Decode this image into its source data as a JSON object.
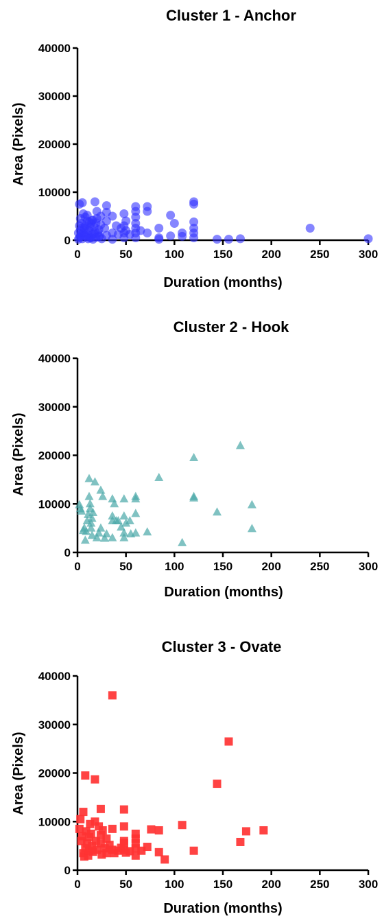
{
  "chart_data": [
    {
      "type": "scatter",
      "title": "Cluster 1 -  Anchor",
      "xlabel": "Duration (months)",
      "ylabel": "Area (Pixels)",
      "xlim": [
        0,
        300
      ],
      "ylim": [
        0,
        40000
      ],
      "xticks": [
        "0",
        "50",
        "100",
        "150",
        "200",
        "250",
        "300"
      ],
      "yticks": [
        "0",
        "10000",
        "20000",
        "30000",
        "40000"
      ],
      "grid": false,
      "series": [
        {
          "marker": "circle",
          "color": "#3333ff",
          "points": [
            [
              1,
              200
            ],
            [
              2,
              500
            ],
            [
              3,
              800
            ],
            [
              4,
              1200
            ],
            [
              5,
              300
            ],
            [
              6,
              1500
            ],
            [
              7,
              2500
            ],
            [
              8,
              3000
            ],
            [
              9,
              700
            ],
            [
              10,
              4000
            ],
            [
              11,
              1000
            ],
            [
              12,
              2000
            ],
            [
              13,
              500
            ],
            [
              14,
              3500
            ],
            [
              15,
              1200
            ],
            [
              16,
              200
            ],
            [
              17,
              2800
            ],
            [
              18,
              1800
            ],
            [
              19,
              600
            ],
            [
              20,
              4500
            ],
            [
              21,
              1500
            ],
            [
              22,
              2200
            ],
            [
              23,
              900
            ],
            [
              24,
              3200
            ],
            [
              25,
              300
            ],
            [
              2,
              7500
            ],
            [
              5,
              7800
            ],
            [
              6,
              5500
            ],
            [
              8,
              4800
            ],
            [
              10,
              5200
            ],
            [
              12,
              3800
            ],
            [
              18,
              8000
            ],
            [
              20,
              6000
            ],
            [
              24,
              5000
            ],
            [
              3,
              2000
            ],
            [
              4,
              3500
            ],
            [
              7,
              1000
            ],
            [
              9,
              2200
            ],
            [
              14,
              500
            ],
            [
              16,
              4200
            ],
            [
              1,
              1500
            ],
            [
              2,
              3000
            ],
            [
              3,
              4500
            ],
            [
              5,
              2600
            ],
            [
              11,
              300
            ],
            [
              13,
              2700
            ],
            [
              15,
              4100
            ],
            [
              17,
              1300
            ],
            [
              19,
              3600
            ],
            [
              22,
              700
            ],
            [
              28,
              2500
            ],
            [
              30,
              7200
            ],
            [
              30,
              5800
            ],
            [
              30,
              4000
            ],
            [
              30,
              1000
            ],
            [
              36,
              5000
            ],
            [
              36,
              1500
            ],
            [
              36,
              200
            ],
            [
              40,
              3000
            ],
            [
              42,
              1200
            ],
            [
              45,
              2500
            ],
            [
              48,
              5500
            ],
            [
              48,
              3000
            ],
            [
              48,
              1500
            ],
            [
              48,
              500
            ],
            [
              50,
              4000
            ],
            [
              50,
              2000
            ],
            [
              54,
              1200
            ],
            [
              60,
              7000
            ],
            [
              60,
              6000
            ],
            [
              60,
              4800
            ],
            [
              60,
              3500
            ],
            [
              60,
              2500
            ],
            [
              60,
              1500
            ],
            [
              60,
              500
            ],
            [
              65,
              2000
            ],
            [
              72,
              7000
            ],
            [
              72,
              6000
            ],
            [
              72,
              1500
            ],
            [
              84,
              2500
            ],
            [
              84,
              500
            ],
            [
              84,
              200
            ],
            [
              96,
              5200
            ],
            [
              96,
              900
            ],
            [
              100,
              3500
            ],
            [
              108,
              1500
            ],
            [
              108,
              800
            ],
            [
              120,
              8000
            ],
            [
              120,
              7500
            ],
            [
              120,
              3800
            ],
            [
              120,
              2500
            ],
            [
              120,
              1500
            ],
            [
              120,
              500
            ],
            [
              144,
              200
            ],
            [
              156,
              200
            ],
            [
              168,
              300
            ],
            [
              240,
              2500
            ],
            [
              300,
              300
            ]
          ]
        }
      ]
    },
    {
      "type": "scatter",
      "title": "Cluster 2 - Hook",
      "xlabel": "Duration (months)",
      "ylabel": "Area (Pixels)",
      "xlim": [
        0,
        300
      ],
      "ylim": [
        0,
        40000
      ],
      "xticks": [
        "0",
        "50",
        "100",
        "150",
        "200",
        "250",
        "300"
      ],
      "yticks": [
        "0",
        "10000",
        "20000",
        "30000",
        "40000"
      ],
      "grid": false,
      "series": [
        {
          "marker": "triangle",
          "color": "#4aa8a8",
          "points": [
            [
              2,
              9800
            ],
            [
              3,
              9000
            ],
            [
              4,
              8500
            ],
            [
              6,
              4500
            ],
            [
              7,
              5000
            ],
            [
              8,
              2500
            ],
            [
              9,
              4300
            ],
            [
              10,
              6500
            ],
            [
              11,
              7800
            ],
            [
              12,
              15200
            ],
            [
              12,
              11500
            ],
            [
              13,
              10000
            ],
            [
              13,
              9000
            ],
            [
              14,
              6000
            ],
            [
              14,
              5000
            ],
            [
              15,
              3500
            ],
            [
              15,
              7000
            ],
            [
              16,
              8200
            ],
            [
              18,
              14500
            ],
            [
              20,
              3000
            ],
            [
              22,
              4000
            ],
            [
              24,
              12800
            ],
            [
              24,
              5000
            ],
            [
              26,
              11500
            ],
            [
              28,
              2900
            ],
            [
              30,
              3800
            ],
            [
              36,
              11000
            ],
            [
              36,
              7500
            ],
            [
              36,
              6500
            ],
            [
              36,
              3000
            ],
            [
              38,
              10000
            ],
            [
              40,
              6500
            ],
            [
              42,
              6500
            ],
            [
              45,
              5200
            ],
            [
              48,
              11000
            ],
            [
              48,
              7500
            ],
            [
              48,
              4000
            ],
            [
              48,
              3000
            ],
            [
              50,
              6000
            ],
            [
              54,
              6500
            ],
            [
              55,
              3800
            ],
            [
              60,
              11500
            ],
            [
              60,
              11000
            ],
            [
              60,
              8000
            ],
            [
              60,
              4000
            ],
            [
              72,
              4200
            ],
            [
              84,
              15400
            ],
            [
              108,
              2000
            ],
            [
              120,
              19500
            ],
            [
              120,
              11500
            ],
            [
              120,
              11200
            ],
            [
              144,
              8300
            ],
            [
              168,
              22000
            ],
            [
              180,
              9800
            ],
            [
              180,
              4900
            ]
          ]
        }
      ]
    },
    {
      "type": "scatter",
      "title": "Cluster 3 - Ovate",
      "xlabel": "Duration (months)",
      "ylabel": "Area (Pixels)",
      "xlim": [
        0,
        300
      ],
      "ylim": [
        0,
        40000
      ],
      "xticks": [
        "0",
        "50",
        "100",
        "150",
        "200",
        "250",
        "300"
      ],
      "yticks": [
        "0",
        "10000",
        "20000",
        "30000",
        "40000"
      ],
      "grid": false,
      "series": [
        {
          "marker": "square",
          "color": "#ff3333",
          "points": [
            [
              2,
              8500
            ],
            [
              3,
              10500
            ],
            [
              4,
              6000
            ],
            [
              5,
              7000
            ],
            [
              6,
              12000
            ],
            [
              6,
              3500
            ],
            [
              7,
              2800
            ],
            [
              8,
              4500
            ],
            [
              8,
              19500
            ],
            [
              9,
              8000
            ],
            [
              10,
              5500
            ],
            [
              11,
              3000
            ],
            [
              12,
              6800
            ],
            [
              12,
              4000
            ],
            [
              13,
              9500
            ],
            [
              14,
              7500
            ],
            [
              15,
              5000
            ],
            [
              16,
              3800
            ],
            [
              18,
              18700
            ],
            [
              18,
              10000
            ],
            [
              19,
              6000
            ],
            [
              20,
              4200
            ],
            [
              22,
              9000
            ],
            [
              24,
              12600
            ],
            [
              24,
              7200
            ],
            [
              24,
              5500
            ],
            [
              25,
              3200
            ],
            [
              26,
              8200
            ],
            [
              28,
              4500
            ],
            [
              30,
              6500
            ],
            [
              30,
              3500
            ],
            [
              33,
              5200
            ],
            [
              36,
              36000
            ],
            [
              36,
              8500
            ],
            [
              36,
              4200
            ],
            [
              38,
              3500
            ],
            [
              42,
              4000
            ],
            [
              45,
              4600
            ],
            [
              48,
              12500
            ],
            [
              48,
              9000
            ],
            [
              48,
              6000
            ],
            [
              48,
              5500
            ],
            [
              48,
              4200
            ],
            [
              50,
              3600
            ],
            [
              54,
              3900
            ],
            [
              60,
              7500
            ],
            [
              60,
              6500
            ],
            [
              60,
              5500
            ],
            [
              60,
              4500
            ],
            [
              60,
              3000
            ],
            [
              66,
              4000
            ],
            [
              72,
              4800
            ],
            [
              76,
              8400
            ],
            [
              84,
              8200
            ],
            [
              84,
              3700
            ],
            [
              90,
              2200
            ],
            [
              108,
              9300
            ],
            [
              120,
              4000
            ],
            [
              144,
              17800
            ],
            [
              156,
              26500
            ],
            [
              168,
              5800
            ],
            [
              174,
              8000
            ],
            [
              192,
              8200
            ]
          ]
        }
      ]
    }
  ]
}
